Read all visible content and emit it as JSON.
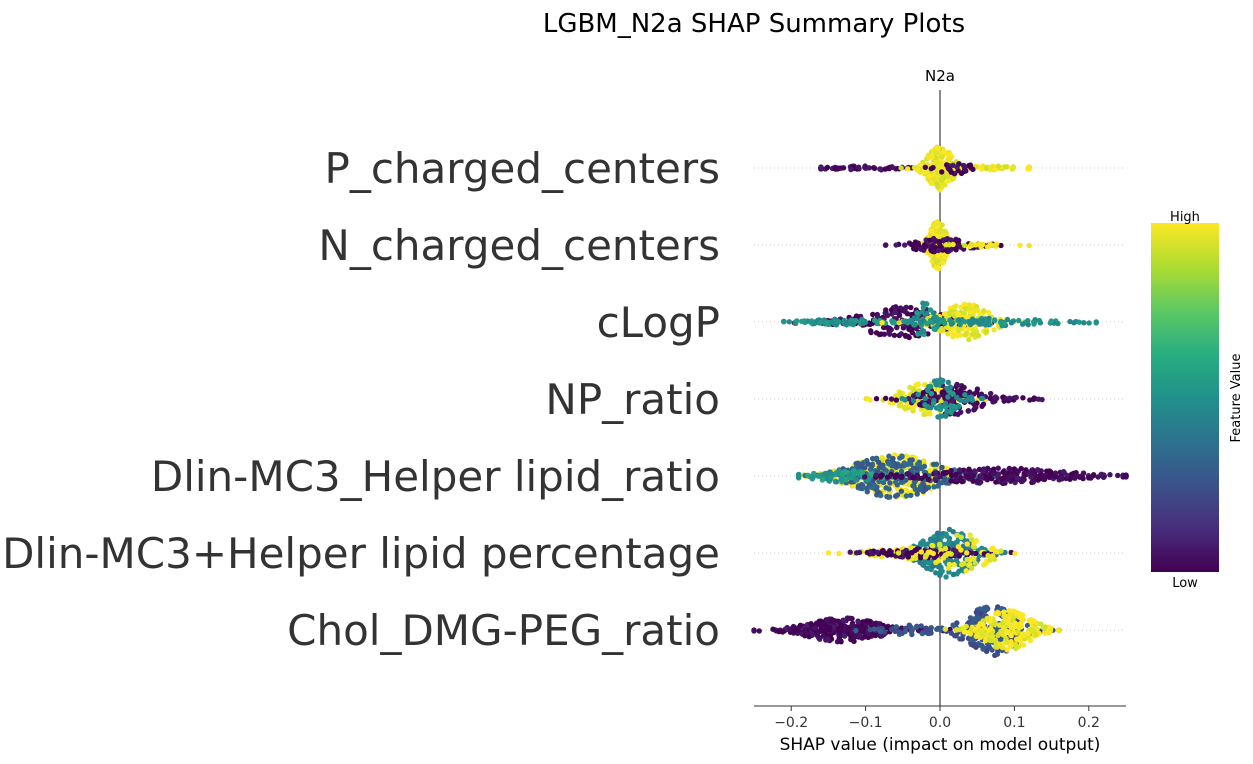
{
  "chart_data": {
    "type": "scatter",
    "subtype": "shap-beeswarm",
    "title": "LGBM_N2a SHAP Summary Plots",
    "subtitle": "N2a",
    "xlabel": "SHAP value (impact on model output)",
    "xlim": [
      -0.25,
      0.25
    ],
    "xticks": [
      -0.2,
      -0.1,
      0.0,
      0.1,
      0.2
    ],
    "xtick_labels": [
      "−0.2",
      "−0.1",
      "0.0",
      "0.1",
      "0.2"
    ],
    "colorbar": {
      "label": "Feature Value",
      "high": "High",
      "low": "Low",
      "colormap": "viridis"
    },
    "features": [
      {
        "name": "P_charged_centers",
        "min": -0.16,
        "max": 0.12,
        "groups": [
          {
            "center": -0.1,
            "spread": 0.05,
            "n": 60,
            "width": 2,
            "color": 0.02
          },
          {
            "center": 0.0,
            "spread": 0.015,
            "n": 220,
            "width": 22,
            "color": 0.98
          },
          {
            "center": 0.07,
            "spread": 0.03,
            "n": 40,
            "width": 2,
            "color": 0.98
          },
          {
            "center": 0.02,
            "spread": 0.02,
            "n": 25,
            "width": 6,
            "color": 0.02
          }
        ]
      },
      {
        "name": "N_charged_centers",
        "min": -0.09,
        "max": 0.12,
        "groups": [
          {
            "center": -0.003,
            "spread": 0.01,
            "n": 200,
            "width": 24,
            "color": 0.98
          },
          {
            "center": 0.0,
            "spread": 0.035,
            "n": 90,
            "width": 7,
            "color": 0.02
          },
          {
            "center": 0.06,
            "spread": 0.03,
            "n": 20,
            "width": 2,
            "color": 0.98
          }
        ]
      },
      {
        "name": "cLogP",
        "min": -0.21,
        "max": 0.21,
        "groups": [
          {
            "center": -0.05,
            "spread": 0.05,
            "n": 200,
            "width": 16,
            "color": 0.02
          },
          {
            "center": -0.13,
            "spread": 0.05,
            "n": 70,
            "width": 3,
            "color": 0.5
          },
          {
            "center": 0.035,
            "spread": 0.03,
            "n": 160,
            "width": 18,
            "color": 0.98
          },
          {
            "center": 0.08,
            "spread": 0.06,
            "n": 80,
            "width": 4,
            "color": 0.5
          },
          {
            "center": -0.02,
            "spread": 0.01,
            "n": 40,
            "width": 20,
            "color": 0.5
          }
        ]
      },
      {
        "name": "NP_ratio",
        "min": -0.11,
        "max": 0.14,
        "groups": [
          {
            "center": -0.02,
            "spread": 0.03,
            "n": 130,
            "width": 16,
            "color": 0.98
          },
          {
            "center": 0.02,
            "spread": 0.035,
            "n": 130,
            "width": 16,
            "color": 0.02
          },
          {
            "center": 0.0,
            "spread": 0.02,
            "n": 60,
            "width": 20,
            "color": 0.5
          },
          {
            "center": 0.1,
            "spread": 0.02,
            "n": 12,
            "width": 2,
            "color": 0.02
          }
        ]
      },
      {
        "name": "Dlin-MC3_Helper lipid_ratio",
        "min": -0.19,
        "max": 0.25,
        "groups": [
          {
            "center": -0.06,
            "spread": 0.05,
            "n": 260,
            "width": 22,
            "color": 0.98
          },
          {
            "center": -0.06,
            "spread": 0.05,
            "n": 220,
            "width": 22,
            "color": 0.3
          },
          {
            "center": -0.13,
            "spread": 0.04,
            "n": 80,
            "width": 6,
            "color": 0.55
          },
          {
            "center": 0.08,
            "spread": 0.08,
            "n": 260,
            "width": 8,
            "color": 0.02
          }
        ]
      },
      {
        "name": "Dlin-MC3+Helper lipid percentage",
        "min": -0.15,
        "max": 0.11,
        "groups": [
          {
            "center": 0.01,
            "spread": 0.03,
            "n": 200,
            "width": 24,
            "color": 0.45
          },
          {
            "center": -0.04,
            "spread": 0.04,
            "n": 90,
            "width": 6,
            "color": 0.98
          },
          {
            "center": -0.02,
            "spread": 0.05,
            "n": 80,
            "width": 5,
            "color": 0.02
          },
          {
            "center": 0.03,
            "spread": 0.03,
            "n": 60,
            "width": 20,
            "color": 0.98
          }
        ]
      },
      {
        "name": "Chol_DMG-PEG_ratio",
        "min": -0.25,
        "max": 0.16,
        "groups": [
          {
            "center": -0.13,
            "spread": 0.045,
            "n": 320,
            "width": 12,
            "color": 0.02
          },
          {
            "center": -0.04,
            "spread": 0.03,
            "n": 40,
            "width": 5,
            "color": 0.25
          },
          {
            "center": 0.07,
            "spread": 0.03,
            "n": 200,
            "width": 26,
            "color": 0.25
          },
          {
            "center": 0.09,
            "spread": 0.03,
            "n": 200,
            "width": 20,
            "color": 0.98
          }
        ]
      }
    ]
  }
}
